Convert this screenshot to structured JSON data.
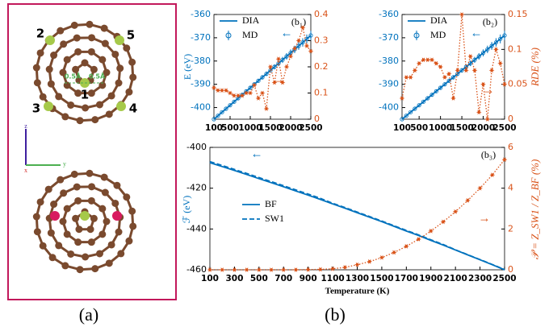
{
  "panel_a": {
    "labels": [
      "1",
      "2",
      "3",
      "4",
      "5",
      "0.5Å",
      "0.5Å"
    ],
    "axes": [
      "z",
      "y",
      "x"
    ]
  },
  "captions": [
    "(a)",
    "(b)"
  ],
  "chart_data": [
    {
      "type": "line",
      "title": "(b₁)",
      "ylabel": "E (eV)",
      "annotations": [
        "←",
        "→"
      ],
      "x": [
        100,
        200,
        300,
        400,
        500,
        600,
        700,
        800,
        900,
        1000,
        1100,
        1200,
        1300,
        1400,
        1500,
        1600,
        1700,
        1800,
        1900,
        2000,
        2100,
        2200,
        2300,
        2400,
        2500
      ],
      "xlim": [
        100,
        2500
      ],
      "xticks": [
        100,
        500,
        1000,
        1500,
        2000,
        2500
      ],
      "ylim": [
        -405,
        -360
      ],
      "yticks": [
        -400,
        -390,
        -380,
        -370,
        -360
      ],
      "y2lim": [
        0,
        0.4
      ],
      "y2ticks": [
        0,
        0.1,
        0.2,
        0.3,
        0.4
      ],
      "series": [
        {
          "name": "DIA",
          "color": "#0072bd",
          "linestyle": "solid",
          "values": [
            -405,
            -403.5,
            -402,
            -400.5,
            -399,
            -397.5,
            -396,
            -394.5,
            -393,
            -391.5,
            -390,
            -388.5,
            -387,
            -385.5,
            -384,
            -382.5,
            -381,
            -379.5,
            -378,
            -376.5,
            -375,
            -373.5,
            -372,
            -370.5,
            -369
          ]
        },
        {
          "name": "MD",
          "color": "#0072bd",
          "marker": "circle",
          "values": [
            -405,
            -403.5,
            -402,
            -400.5,
            -399,
            -397.5,
            -396,
            -394.5,
            -393,
            -391.5,
            -390,
            -388.5,
            -387,
            -385.5,
            -384,
            -382.5,
            -381,
            -379.5,
            -378,
            -376.5,
            -375,
            -373.5,
            -372,
            -370.5,
            -369
          ],
          "errors": [
            0.3,
            0.35,
            0.4,
            0.45,
            0.5,
            0.55,
            0.6,
            0.65,
            0.7,
            0.75,
            0.8,
            0.85,
            0.9,
            0.95,
            1.0,
            1.1,
            1.2,
            1.3,
            1.4,
            1.5,
            1.6,
            1.7,
            1.8,
            1.9,
            2.0
          ]
        },
        {
          "axis": "y2",
          "color": "#d95319",
          "linestyle": "dotted",
          "marker": "star",
          "values": [
            0.12,
            0.11,
            0.11,
            0.11,
            0.1,
            0.09,
            0.09,
            0.09,
            0.1,
            0.1,
            0.13,
            0.08,
            0.1,
            0.04,
            0.2,
            0.14,
            0.23,
            0.14,
            0.2,
            0.24,
            0.27,
            0.3,
            0.35,
            0.28,
            0.26
          ]
        }
      ]
    },
    {
      "type": "line",
      "title": "(b₂)",
      "y2label": "RDE (%)",
      "annotations": [
        "←",
        "→"
      ],
      "x": [
        100,
        200,
        300,
        400,
        500,
        600,
        700,
        800,
        900,
        1000,
        1100,
        1200,
        1300,
        1400,
        1500,
        1600,
        1700,
        1800,
        1900,
        2000,
        2100,
        2200,
        2300,
        2400,
        2500
      ],
      "xlim": [
        100,
        2500
      ],
      "xticks": [
        100,
        500,
        1000,
        1500,
        2000,
        2500
      ],
      "ylim": [
        -405,
        -360
      ],
      "yticks": [
        -400,
        -390,
        -380,
        -370,
        -360
      ],
      "y2lim": [
        0,
        0.15
      ],
      "y2ticks": [
        0,
        0.05,
        0.1,
        0.15
      ],
      "series": [
        {
          "name": "DIA",
          "color": "#0072bd",
          "linestyle": "solid",
          "values": [
            -405,
            -403.5,
            -402,
            -400.5,
            -399,
            -397.5,
            -396,
            -394.5,
            -393,
            -391.5,
            -390,
            -388.5,
            -387,
            -385.5,
            -384,
            -382.5,
            -381,
            -379.5,
            -378,
            -376.5,
            -375,
            -373.5,
            -372,
            -370.5,
            -369
          ]
        },
        {
          "name": "MD",
          "color": "#0072bd",
          "marker": "circle",
          "values": [
            -405,
            -403.5,
            -402,
            -400.5,
            -399,
            -397.5,
            -396,
            -394.5,
            -393,
            -391.5,
            -390,
            -388.5,
            -387,
            -385.5,
            -384,
            -382.5,
            -381,
            -379.5,
            -378,
            -376.5,
            -375,
            -373.5,
            -372,
            -370.5,
            -369
          ],
          "errors": [
            0.3,
            0.35,
            0.4,
            0.45,
            0.5,
            0.55,
            0.6,
            0.65,
            0.7,
            0.75,
            0.8,
            0.85,
            0.9,
            0.95,
            1.0,
            1.1,
            1.2,
            1.3,
            1.4,
            1.5,
            1.6,
            1.7,
            1.8,
            1.9,
            2.0
          ]
        },
        {
          "axis": "y2",
          "color": "#d95319",
          "linestyle": "dotted",
          "marker": "star",
          "values": [
            0.03,
            0.06,
            0.06,
            0.07,
            0.08,
            0.085,
            0.085,
            0.085,
            0.08,
            0.075,
            0.06,
            0.065,
            0.03,
            0.07,
            0.15,
            0.07,
            0.09,
            0.07,
            0.01,
            0.05,
            0,
            0.07,
            0.1,
            0.08,
            0.05
          ]
        }
      ]
    },
    {
      "type": "line",
      "title": "(b₃)",
      "xlabel": "Temperature (K)",
      "ylabel": "ℱ (eV)",
      "y2label": "𝒫 = Z_SW1 / Z_BF (%)",
      "annotations": [
        "←",
        "→"
      ],
      "x": [
        100,
        200,
        300,
        400,
        500,
        600,
        700,
        800,
        900,
        1000,
        1100,
        1200,
        1300,
        1400,
        1500,
        1600,
        1700,
        1800,
        1900,
        2000,
        2100,
        2200,
        2300,
        2400,
        2500
      ],
      "xlim": [
        100,
        2500
      ],
      "xticks": [
        100,
        300,
        500,
        700,
        900,
        1100,
        1300,
        1500,
        1700,
        1900,
        2100,
        2300,
        2500
      ],
      "ylim": [
        -460,
        -400
      ],
      "yticks": [
        -460,
        -440,
        -420,
        -400
      ],
      "y2lim": [
        0,
        6
      ],
      "y2ticks": [
        0,
        2,
        4,
        6
      ],
      "series": [
        {
          "name": "BF",
          "color": "#0072bd",
          "linestyle": "solid",
          "values": [
            -407.5,
            -409.4,
            -411.3,
            -413.3,
            -415.3,
            -417.3,
            -419.3,
            -421.4,
            -423.4,
            -425.5,
            -427.7,
            -429.8,
            -432,
            -434.2,
            -436.4,
            -438.7,
            -441,
            -443.2,
            -445.6,
            -447.9,
            -450.3,
            -452.7,
            -455.1,
            -457.5,
            -460
          ]
        },
        {
          "name": "SW1",
          "color": "#0072bd",
          "linestyle": "dashed",
          "values": [
            -407,
            -408.9,
            -410.8,
            -412.8,
            -414.8,
            -416.8,
            -418.8,
            -420.9,
            -422.9,
            -425,
            -427.4,
            -429.5,
            -431.7,
            -433.9,
            -436.1,
            -438.4,
            -440.7,
            -442.9,
            -445.3,
            -447.6,
            -450.2,
            -452.6,
            -455,
            -457.4,
            -459.9
          ]
        },
        {
          "axis": "y2",
          "color": "#d95319",
          "linestyle": "dotted",
          "marker": "star",
          "values": [
            0,
            0,
            0,
            0,
            0,
            0,
            0,
            0,
            0.01,
            0.02,
            0.05,
            0.12,
            0.25,
            0.4,
            0.6,
            0.85,
            1.15,
            1.5,
            1.9,
            2.35,
            2.85,
            3.4,
            4,
            4.65,
            5.4
          ]
        }
      ]
    }
  ]
}
